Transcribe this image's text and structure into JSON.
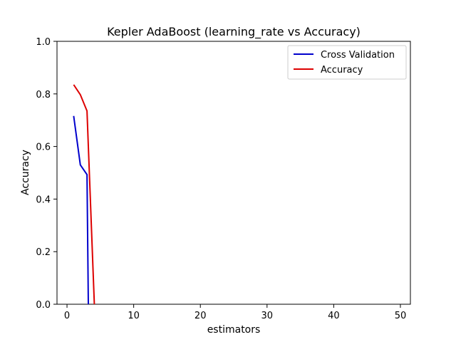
{
  "chart_data": {
    "type": "line",
    "title": "Kepler AdaBoost (learning_rate vs Accuracy)",
    "xlabel": "estimators",
    "ylabel": "Accuracy",
    "xlim": [
      -1.5,
      51.5
    ],
    "ylim": [
      0,
      1.0
    ],
    "xticks": [
      0,
      10,
      20,
      30,
      40,
      50
    ],
    "yticks": [
      0.0,
      0.2,
      0.4,
      0.6,
      0.8,
      1.0
    ],
    "xtick_labels": [
      "0",
      "10",
      "20",
      "30",
      "40",
      "50"
    ],
    "ytick_labels": [
      "0.0",
      "0.2",
      "0.4",
      "0.6",
      "0.8",
      "1.0"
    ],
    "grid": false,
    "legend_position": "top-right",
    "series": [
      {
        "name": "Cross Validation",
        "color": "#0000cc",
        "x": [
          1,
          2,
          3,
          3.2
        ],
        "y": [
          0.716,
          0.53,
          0.493,
          0.0
        ]
      },
      {
        "name": "Accuracy",
        "color": "#dd0000",
        "x": [
          1,
          2,
          3,
          4.1
        ],
        "y": [
          0.835,
          0.797,
          0.735,
          0.0
        ]
      }
    ]
  }
}
